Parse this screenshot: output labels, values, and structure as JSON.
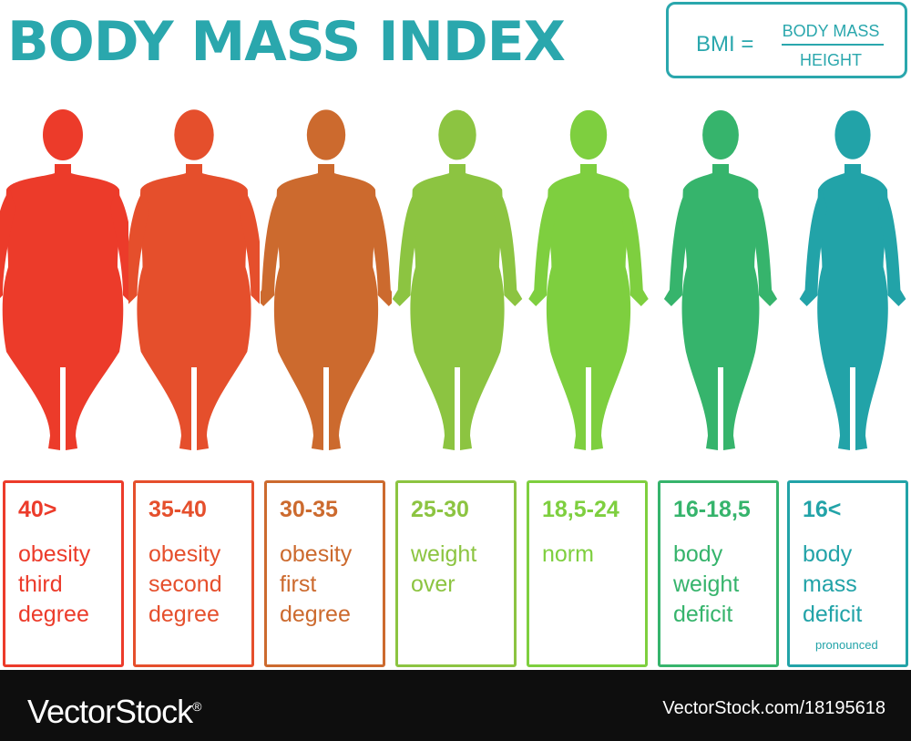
{
  "title": "BODY MASS INDEX",
  "title_color": "#2aa7ad",
  "formula": {
    "lhs": "BMI =",
    "numerator": "BODY MASS",
    "denominator": "HEIGHT",
    "color": "#2aa7ad"
  },
  "categories": [
    {
      "range": "40>",
      "label": "obesity\nthird\ndegree",
      "note": "",
      "color": "#ec3b2a",
      "body": "obese-3"
    },
    {
      "range": "35-40",
      "label": "obesity\nsecond\ndegree",
      "note": "",
      "color": "#e54f2c",
      "body": "obese-2"
    },
    {
      "range": "30-35",
      "label": "obesity\nfirst\ndegree",
      "note": "",
      "color": "#cc6a2e",
      "body": "obese-1"
    },
    {
      "range": "25-30",
      "label": "weight\nover",
      "note": "",
      "color": "#8cc441",
      "body": "overweight"
    },
    {
      "range": "18,5-24",
      "label": "norm",
      "note": "",
      "color": "#7ecf3f",
      "body": "normal"
    },
    {
      "range": "16-18,5",
      "label": "body\nweight\ndeficit",
      "note": "",
      "color": "#36b46c",
      "body": "underweight"
    },
    {
      "range": "16<",
      "label": "body\nmass\ndeficit",
      "note": "pronounced",
      "color": "#22a3a8",
      "body": "severe-underweight"
    }
  ],
  "footer": {
    "brand": "VectorStock",
    "brand_mark": "®",
    "url": "VectorStock.com/18195618"
  }
}
